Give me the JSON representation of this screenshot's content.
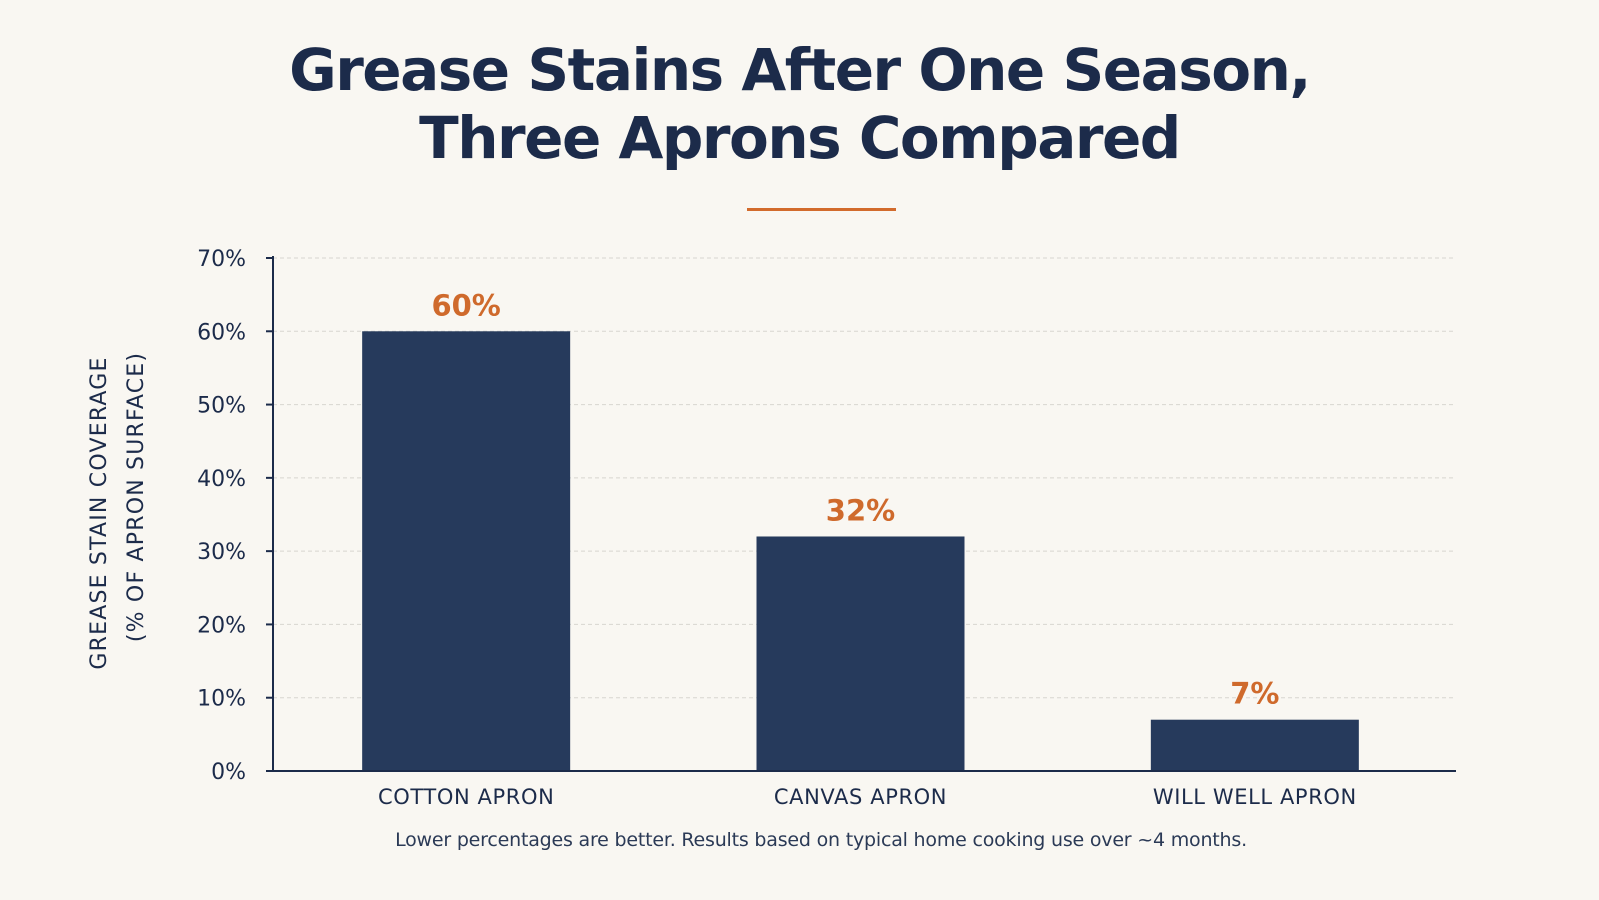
{
  "chart_data": {
    "type": "bar",
    "title_lines": [
      "Grease Stains After One Season,",
      "Three Aprons Compared"
    ],
    "ylabel_lines": [
      "GREASE STAIN COVERAGE",
      "(% OF APRON SURFACE)"
    ],
    "xlabel": "",
    "categories": [
      "COTTON APRON",
      "CANVAS APRON",
      "WILL WELL APRON"
    ],
    "values": [
      60,
      32,
      7
    ],
    "data_labels": [
      "60%",
      "32%",
      "7%"
    ],
    "ylim": [
      0,
      70
    ],
    "yticks": [
      0,
      10,
      20,
      30,
      40,
      50,
      60,
      70
    ],
    "ytick_labels": [
      "0%",
      "10%",
      "20%",
      "30%",
      "40%",
      "50%",
      "60%",
      "70%"
    ],
    "grid": true,
    "legend": "none",
    "footnote": "Lower percentages are better. Results based on typical home cooking use over ~4 months.",
    "colors": {
      "bar": "#263a5c",
      "data_label": "#cf6a2c",
      "accent_rule": "#d26b2c",
      "grid": "#d8d6d0",
      "axis": "#1c2b4a",
      "background": "#f9f7f2"
    }
  }
}
